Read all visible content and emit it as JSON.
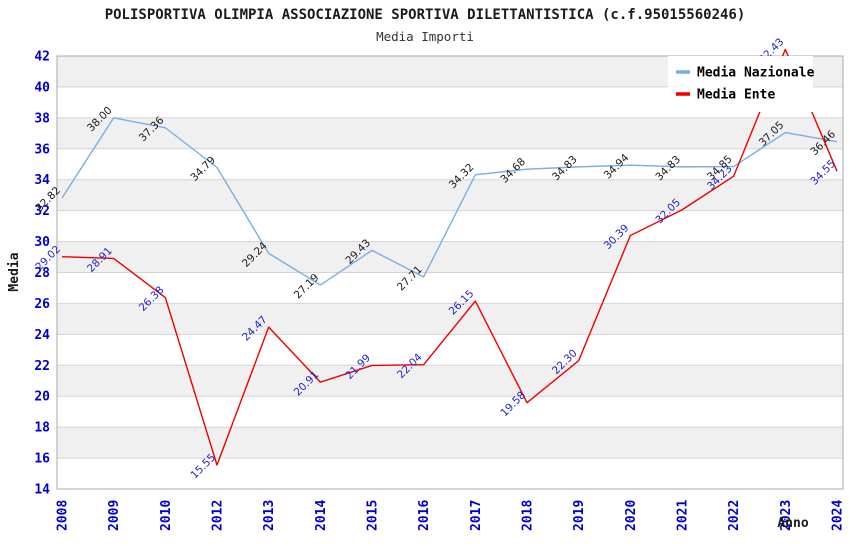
{
  "chart_data": {
    "type": "line",
    "title": "POLISPORTIVA OLIMPIA ASSOCIAZIONE SPORTIVA DILETTANTISTICA (c.f.95015560246)",
    "subtitle": "Media Importi",
    "xlabel": "Anno",
    "ylabel": "Media",
    "ylim": [
      14,
      42
    ],
    "ytick_step": 2,
    "yticks": [
      14,
      16,
      18,
      20,
      22,
      24,
      26,
      28,
      30,
      32,
      34,
      36,
      38,
      40,
      42
    ],
    "grid": "horizontal gridlines with alternating shaded bands",
    "legend_position": "top-right",
    "categories": [
      "2008",
      "2009",
      "2010",
      "2012",
      "2013",
      "2014",
      "2015",
      "2016",
      "2017",
      "2018",
      "2019",
      "2020",
      "2021",
      "2022",
      "2023",
      "2024"
    ],
    "series": [
      {
        "name": "Media Nazionale",
        "color": "#79afe1",
        "label_color": "#1a1a1a",
        "values": [
          32.82,
          38.0,
          37.36,
          34.79,
          29.24,
          27.19,
          29.43,
          27.71,
          34.32,
          34.68,
          34.83,
          34.94,
          34.83,
          34.85,
          37.05,
          36.46
        ]
      },
      {
        "name": "Media Ente",
        "color": "#ee0000",
        "label_color": "#2222cc",
        "values": [
          29.02,
          28.91,
          26.38,
          15.55,
          24.47,
          20.91,
          21.99,
          22.04,
          26.15,
          19.58,
          22.3,
          30.39,
          32.05,
          34.23,
          42.43,
          34.55
        ]
      }
    ],
    "colors": {
      "tick_label": "#0000cc",
      "band_fill": "#f0f0f0",
      "gridline": "#d4d4d4",
      "plot_border": "#a8a8a8",
      "legend_background": "#ffffff"
    }
  }
}
